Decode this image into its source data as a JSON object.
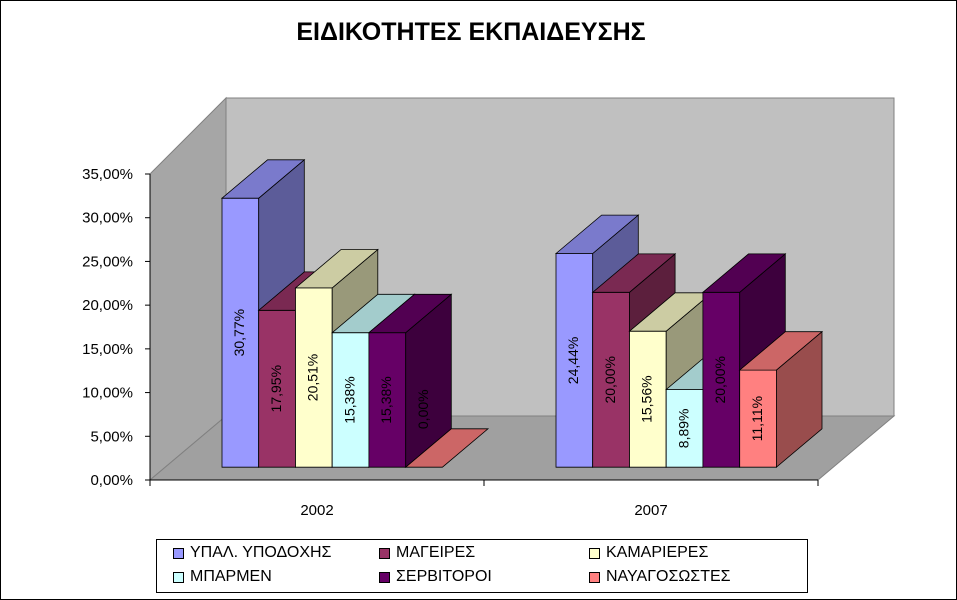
{
  "chart_data": {
    "type": "bar",
    "style": "3d-clustered-column",
    "title": "ΕΙΔΙΚΟΤΗΤΕΣ ΕΚΠΑΙΔΕΥΣΗΣ",
    "categories": [
      "2002",
      "2007"
    ],
    "ylim": [
      0,
      35
    ],
    "y_ticks": [
      "0,00%",
      "5,00%",
      "10,00%",
      "15,00%",
      "20,00%",
      "25,00%",
      "30,00%",
      "35,00%"
    ],
    "legend_position": "bottom",
    "grid": false,
    "series": [
      {
        "name": "ΥΠΑΛ. ΥΠΟΔΟΧΗΣ",
        "values": [
          30.77,
          24.44
        ],
        "labels": [
          "30,77%",
          "24,44%"
        ],
        "color": "#9999ff"
      },
      {
        "name": "ΜΑΓΕΙΡΕΣ",
        "values": [
          17.95,
          20.0
        ],
        "labels": [
          "17,95%",
          "20,00%"
        ],
        "color": "#993366"
      },
      {
        "name": "ΚΑΜΑΡΙΕΡΕΣ",
        "values": [
          20.51,
          15.56
        ],
        "labels": [
          "20,51%",
          "15,56%"
        ],
        "color": "#ffffcc"
      },
      {
        "name": "ΜΠΑΡΜΕΝ",
        "values": [
          15.38,
          8.89
        ],
        "labels": [
          "15,38%",
          "8,89%"
        ],
        "color": "#ccffff"
      },
      {
        "name": "ΣΕΡΒΙΤΟΡΟΙ",
        "values": [
          15.38,
          20.0
        ],
        "labels": [
          "15,38%",
          "20,00%"
        ],
        "color": "#660066"
      },
      {
        "name": "ΝΑΥΑΓΟΣΩΣΤΕΣ",
        "values": [
          0.0,
          11.11
        ],
        "labels": [
          "0,00%",
          "11,11%"
        ],
        "color": "#ff8080"
      }
    ]
  }
}
